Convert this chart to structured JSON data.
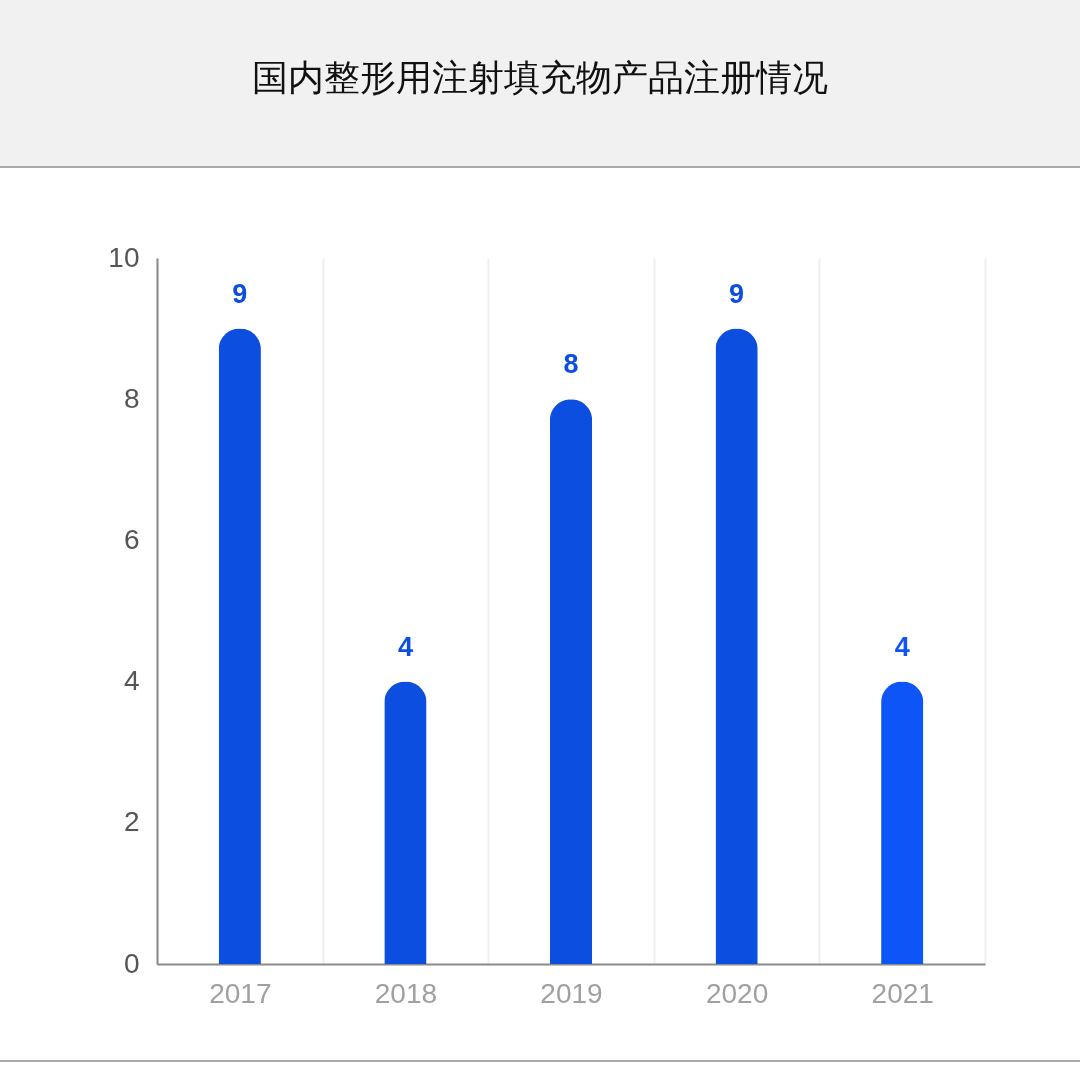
{
  "chart_data": {
    "type": "bar",
    "title": "国内整形用注射填充物产品注册情况",
    "categories": [
      "2017",
      "2018",
      "2019",
      "2020",
      "2021"
    ],
    "values": [
      9,
      4,
      8,
      9,
      4
    ],
    "colors": [
      "#0b4ee0",
      "#0b4ee0",
      "#0b4ee0",
      "#0b4ee0",
      "#0d55f7"
    ],
    "ylim": [
      0,
      10
    ],
    "yticks": [
      0,
      2,
      4,
      6,
      8,
      10
    ],
    "grid": "x",
    "data_labels": true
  }
}
